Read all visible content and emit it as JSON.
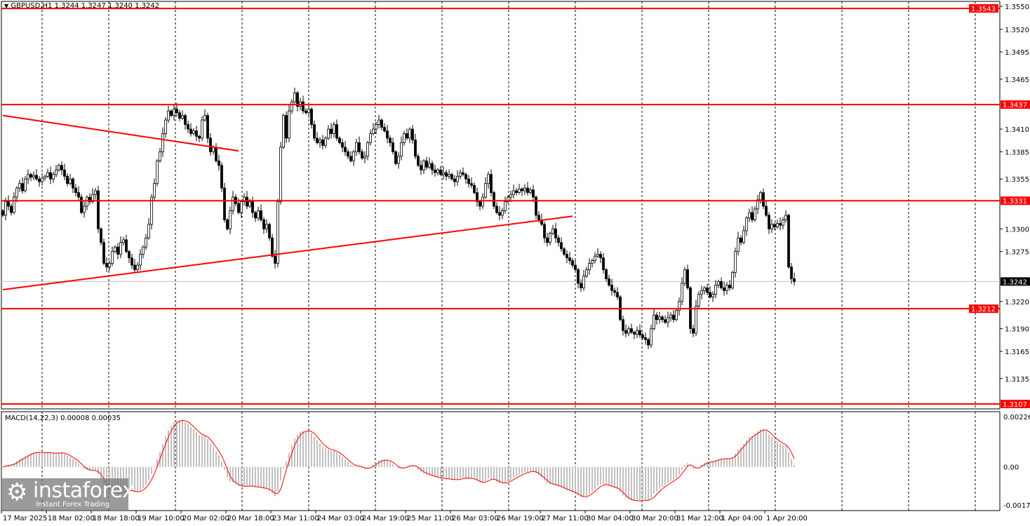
{
  "header": {
    "symbol_line": "GBPUSD,H1  1.3244 1.3247 1.3240 1.3242",
    "collapse_icon": "triangle-down-icon"
  },
  "indicator": {
    "label": "MACD(14,22,3) 0.00008 0.00035"
  },
  "logo": {
    "name": "instaforex",
    "tagline": "Instant Forex Trading"
  },
  "colors": {
    "level_line": "#ff0000",
    "candle": "#000000",
    "macd_hist": "#c0c0c0",
    "macd_signal": "#ff0000",
    "current_price_label": "#000000"
  },
  "chart_data": [
    {
      "type": "candlestick",
      "symbol": "GBPUSD",
      "timeframe": "H1",
      "ylim": [
        1.31,
        1.3555
      ],
      "grid": true,
      "y_ticks": [
        "1.3550",
        "1.3520",
        "1.3495",
        "1.3465",
        "1.3410",
        "1.3385",
        "1.3355",
        "1.3300",
        "1.3275",
        "1.3220",
        "1.3190",
        "1.3165",
        "1.3135"
      ],
      "x_ticks": [
        "17 Mar 2025",
        "18 Mar 02:00",
        "18 Mar 18:00",
        "19 Mar 10:00",
        "20 Mar 02:00",
        "20 Mar 18:00",
        "23 Mar 11:00",
        "24 Mar 03:00",
        "24 Mar 19:00",
        "25 Mar 11:00",
        "26 Mar 03:00",
        "26 Mar 19:00",
        "27 Mar 11:00",
        "30 Mar 04:00",
        "30 Mar 20:00",
        "31 Mar 12:00",
        "1 Apr 04:00",
        "1 Apr 20:00"
      ],
      "current_price": "1.3242",
      "levels": [
        "1.3543",
        "1.3437",
        "1.3331",
        "1.3212",
        "1.3107"
      ],
      "trendlines": [
        {
          "start_bar": 0,
          "start_price": 1.3425,
          "end_bar": 84,
          "end_price": 1.3386
        },
        {
          "start_bar": 0,
          "start_price": 1.3233,
          "end_bar": 203,
          "end_price": 1.3314
        }
      ],
      "closes": [
        1.3315,
        1.333,
        1.3325,
        1.3318,
        1.3335,
        1.3345,
        1.335,
        1.3342,
        1.3355,
        1.336,
        1.3357,
        1.3359,
        1.3355,
        1.3352,
        1.3356,
        1.3358,
        1.3362,
        1.3355,
        1.336,
        1.3365,
        1.337,
        1.3365,
        1.3358,
        1.335,
        1.3355,
        1.3345,
        1.334,
        1.3335,
        1.3318,
        1.3325,
        1.3335,
        1.333,
        1.3338,
        1.3342,
        1.33,
        1.3285,
        1.3262,
        1.3258,
        1.3262,
        1.3275,
        1.328,
        1.3272,
        1.3285,
        1.3288,
        1.3275,
        1.3268,
        1.326,
        1.3255,
        1.326,
        1.3272,
        1.328,
        1.329,
        1.3305,
        1.3335,
        1.335,
        1.3375,
        1.3385,
        1.3405,
        1.342,
        1.343,
        1.3425,
        1.3432,
        1.3428,
        1.3422,
        1.3425,
        1.3415,
        1.341,
        1.3405,
        1.3408,
        1.3402,
        1.34,
        1.342,
        1.3425,
        1.34,
        1.3385,
        1.339,
        1.3375,
        1.337,
        1.3345,
        1.331,
        1.33,
        1.332,
        1.3335,
        1.3328,
        1.3318,
        1.333,
        1.3335,
        1.3325,
        1.333,
        1.3318,
        1.3312,
        1.332,
        1.331,
        1.33,
        1.3305,
        1.329,
        1.327,
        1.3262,
        1.333,
        1.339,
        1.3425,
        1.34,
        1.343,
        1.344,
        1.345,
        1.3435,
        1.344,
        1.343,
        1.3428,
        1.3432,
        1.3415,
        1.34,
        1.3395,
        1.3398,
        1.3392,
        1.34,
        1.341,
        1.3405,
        1.3415,
        1.34,
        1.3395,
        1.339,
        1.3385,
        1.338,
        1.3375,
        1.3385,
        1.3395,
        1.3385,
        1.3378,
        1.338,
        1.3395,
        1.3405,
        1.341,
        1.3415,
        1.342,
        1.3412,
        1.3408,
        1.34,
        1.3395,
        1.3385,
        1.3372,
        1.338,
        1.3395,
        1.3405,
        1.34,
        1.341,
        1.3398,
        1.338,
        1.337,
        1.3365,
        1.3375,
        1.3368,
        1.3372,
        1.3365,
        1.3362,
        1.3365,
        1.336,
        1.3362,
        1.3358,
        1.336,
        1.3355,
        1.3352,
        1.3358,
        1.3362,
        1.336,
        1.3355,
        1.335,
        1.3348,
        1.334,
        1.333,
        1.3325,
        1.3335,
        1.335,
        1.336,
        1.334,
        1.3325,
        1.3318,
        1.3315,
        1.332,
        1.333,
        1.3335,
        1.3338,
        1.3342,
        1.334,
        1.3344,
        1.3342,
        1.3345,
        1.334,
        1.3343,
        1.3335,
        1.3315,
        1.331,
        1.3305,
        1.329,
        1.3285,
        1.3295,
        1.33,
        1.329,
        1.3285,
        1.3278,
        1.3272,
        1.3268,
        1.3265,
        1.326,
        1.3255,
        1.324,
        1.3235,
        1.3248,
        1.3255,
        1.3262,
        1.3265,
        1.327,
        1.3272,
        1.3268,
        1.3255,
        1.3245,
        1.3238,
        1.3232,
        1.323,
        1.3225,
        1.32,
        1.3188,
        1.3185,
        1.319,
        1.3186,
        1.3184,
        1.3188,
        1.3183,
        1.318,
        1.3178,
        1.3172,
        1.319,
        1.3205,
        1.32,
        1.3203,
        1.32,
        1.3197,
        1.3202,
        1.3205,
        1.32,
        1.321,
        1.322,
        1.324,
        1.3255,
        1.3235,
        1.319,
        1.3185,
        1.3215,
        1.3228,
        1.3232,
        1.3235,
        1.323,
        1.3225,
        1.3228,
        1.3238,
        1.3242,
        1.3235,
        1.3232,
        1.3238,
        1.3235,
        1.3252,
        1.3275,
        1.329,
        1.3285,
        1.3298,
        1.3312,
        1.3318,
        1.331,
        1.3322,
        1.3332,
        1.334,
        1.3325,
        1.3315,
        1.33,
        1.3305,
        1.3302,
        1.3306,
        1.3304,
        1.331,
        1.3315,
        1.3258,
        1.3245,
        1.3242
      ]
    },
    {
      "type": "bar+line",
      "indicator": "MACD",
      "params": [
        14,
        22,
        3
      ],
      "ylim": [
        -0.00171,
        0.00226
      ],
      "y_ticks": [
        "0.00226",
        "0.00",
        "-0.00171"
      ],
      "main_value": "0.00008",
      "signal_value": "0.00035"
    }
  ]
}
